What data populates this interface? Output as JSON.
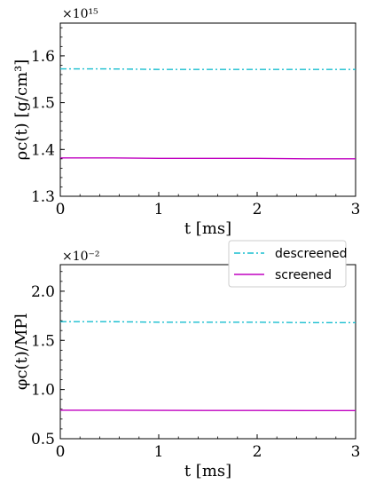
{
  "chart_data": [
    {
      "type": "line",
      "multiplier": "×10¹⁵",
      "xlabel": "t [ms]",
      "ylabel": "ρc(t) [g/cm³]",
      "xlim": [
        0,
        3
      ],
      "ylim": [
        1.3,
        1.67
      ],
      "xticks": [
        "0",
        "1",
        "2",
        "3"
      ],
      "yticks": [
        "1.3",
        "1.4",
        "1.5",
        "1.6"
      ],
      "ytick_values": [
        1.3,
        1.4,
        1.5,
        1.6
      ],
      "grid": false,
      "series": [
        {
          "name": "descreened",
          "color": "#17becf",
          "style": "dashdot",
          "x": [
            0,
            0.5,
            1,
            1.5,
            2,
            2.5,
            3
          ],
          "values": [
            1.572,
            1.572,
            1.571,
            1.571,
            1.571,
            1.571,
            1.571
          ]
        },
        {
          "name": "screened",
          "color": "#c000c0",
          "style": "solid",
          "x": [
            0,
            0.5,
            1,
            1.5,
            2,
            2.5,
            3
          ],
          "values": [
            1.382,
            1.382,
            1.381,
            1.381,
            1.381,
            1.38,
            1.38
          ]
        }
      ]
    },
    {
      "type": "line",
      "multiplier": "×10⁻²",
      "xlabel": "t [ms]",
      "ylabel": "φc(t)/MPl",
      "xlim": [
        0,
        3
      ],
      "ylim": [
        0.5,
        2.27
      ],
      "xticks": [
        "0",
        "1",
        "2",
        "3"
      ],
      "yticks": [
        "0.5",
        "1.0",
        "1.5",
        "2.0"
      ],
      "ytick_values": [
        0.5,
        1.0,
        1.5,
        2.0
      ],
      "grid": false,
      "legend": {
        "position": "top-right",
        "entries": [
          "descreened",
          "screened"
        ]
      },
      "series": [
        {
          "name": "descreened",
          "color": "#17becf",
          "style": "dashdot",
          "x": [
            0,
            0.5,
            1,
            1.5,
            2,
            2.5,
            3
          ],
          "values": [
            1.69,
            1.69,
            1.685,
            1.685,
            1.685,
            1.68,
            1.68
          ]
        },
        {
          "name": "screened",
          "color": "#c000c0",
          "style": "solid",
          "x": [
            0,
            0.5,
            1,
            1.5,
            2,
            2.5,
            3
          ],
          "values": [
            0.79,
            0.79,
            0.788,
            0.787,
            0.787,
            0.786,
            0.786
          ]
        }
      ]
    }
  ]
}
